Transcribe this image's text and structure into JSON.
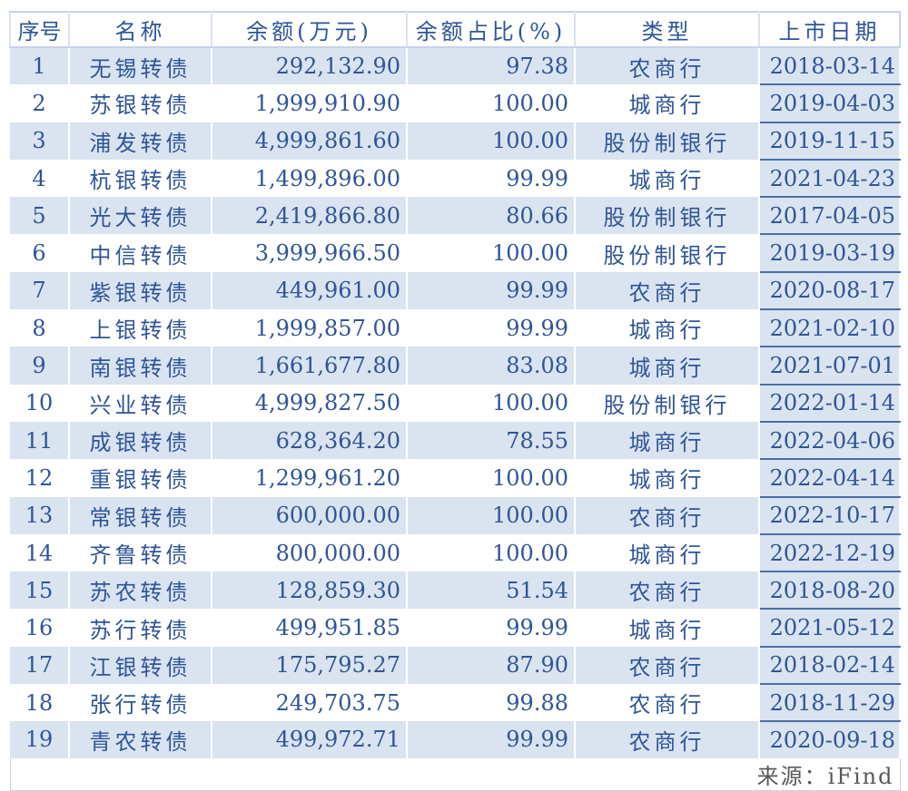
{
  "headers": [
    "序号",
    "名称",
    "余额(万元)",
    "余额占比(%)",
    "类型",
    "上市日期"
  ],
  "rows": [
    [
      "1",
      "无锡转债",
      "292,132.90",
      "97.38",
      "农商行",
      "2018-03-14"
    ],
    [
      "2",
      "苏银转债",
      "1,999,910.90",
      "100.00",
      "城商行",
      "2019-04-03"
    ],
    [
      "3",
      "浦发转债",
      "4,999,861.60",
      "100.00",
      "股份制银行",
      "2019-11-15"
    ],
    [
      "4",
      "杭银转债",
      "1,499,896.00",
      "99.99",
      "城商行",
      "2021-04-23"
    ],
    [
      "5",
      "光大转债",
      "2,419,866.80",
      "80.66",
      "股份制银行",
      "2017-04-05"
    ],
    [
      "6",
      "中信转债",
      "3,999,966.50",
      "100.00",
      "股份制银行",
      "2019-03-19"
    ],
    [
      "7",
      "紫银转债",
      "449,961.00",
      "99.99",
      "农商行",
      "2020-08-17"
    ],
    [
      "8",
      "上银转债",
      "1,999,857.00",
      "99.99",
      "城商行",
      "2021-02-10"
    ],
    [
      "9",
      "南银转债",
      "1,661,677.80",
      "83.08",
      "城商行",
      "2021-07-01"
    ],
    [
      "10",
      "兴业转债",
      "4,999,827.50",
      "100.00",
      "股份制银行",
      "2022-01-14"
    ],
    [
      "11",
      "成银转债",
      "628,364.20",
      "78.55",
      "城商行",
      "2022-04-06"
    ],
    [
      "12",
      "重银转债",
      "1,299,961.20",
      "100.00",
      "城商行",
      "2022-04-14"
    ],
    [
      "13",
      "常银转债",
      "600,000.00",
      "100.00",
      "农商行",
      "2022-10-17"
    ],
    [
      "14",
      "齐鲁转债",
      "800,000.00",
      "100.00",
      "城商行",
      "2022-12-19"
    ],
    [
      "15",
      "苏农转债",
      "128,859.30",
      "51.54",
      "农商行",
      "2018-08-20"
    ],
    [
      "16",
      "苏行转债",
      "499,951.85",
      "99.99",
      "城商行",
      "2021-05-12"
    ],
    [
      "17",
      "江银转债",
      "175,795.27",
      "87.90",
      "农商行",
      "2018-02-14"
    ],
    [
      "18",
      "张行转债",
      "249,703.75",
      "99.88",
      "农商行",
      "2018-11-29"
    ],
    [
      "19",
      "青农转债",
      "499,972.71",
      "99.99",
      "农商行",
      "2020-09-18"
    ]
  ],
  "source": "来源：iFind",
  "colors": {
    "text": "#2F5597",
    "shade": "#DAE3F0",
    "source_text": "#595959"
  }
}
